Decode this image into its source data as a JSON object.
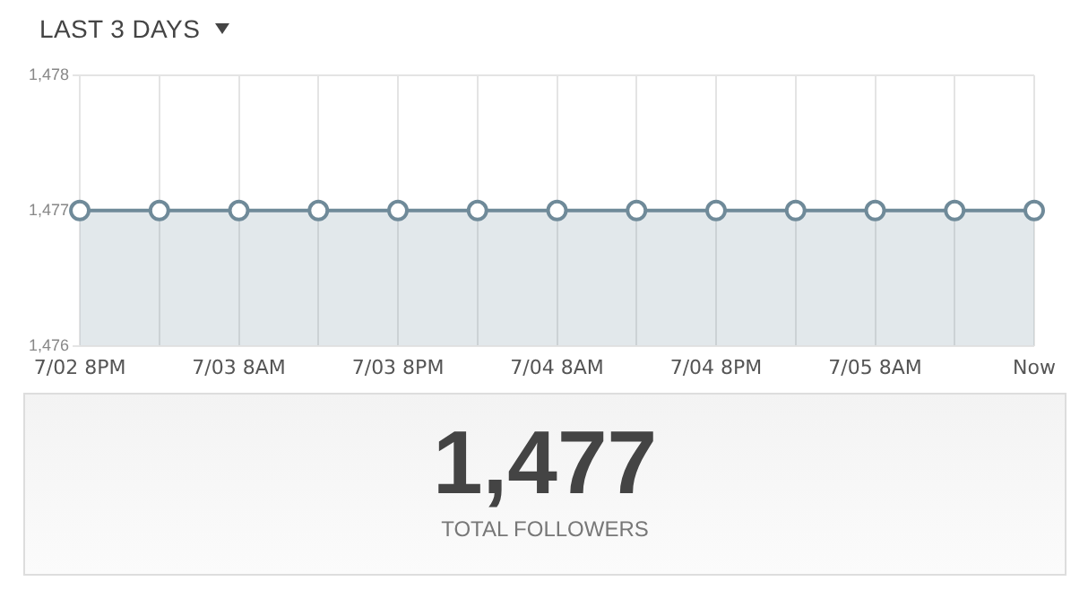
{
  "chart_data": {
    "type": "area",
    "title": "LAST 3 DAYS",
    "categories": [
      "7/02 8PM",
      null,
      "7/03 8AM",
      null,
      "7/03 8PM",
      null,
      "7/04 8AM",
      null,
      "7/04 8PM",
      null,
      "7/05 8AM",
      null,
      "Now"
    ],
    "values": [
      1477,
      1477,
      1477,
      1477,
      1477,
      1477,
      1477,
      1477,
      1477,
      1477,
      1477,
      1477,
      1477
    ],
    "color": "#6f8a99",
    "ylim": [
      1476,
      1478
    ],
    "yticks": [
      {
        "value": 1476,
        "label": "1,476"
      },
      {
        "value": 1477,
        "label": "1,477"
      },
      {
        "value": 1478,
        "label": "1,478"
      }
    ],
    "grid": true,
    "marker": "circle",
    "annotations": [
      "1,477",
      "TOTAL FOLLOWERS"
    ]
  }
}
